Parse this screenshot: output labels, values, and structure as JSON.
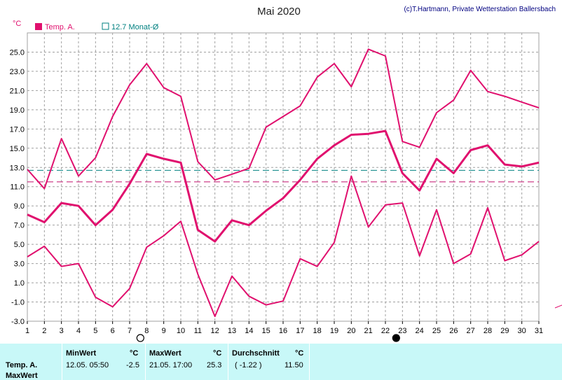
{
  "chart_data": {
    "type": "line",
    "title": "Mai 2020",
    "copyright": "(c)T.Hartmann, Private Wetterstation Ballersbach",
    "ylabel": "°C",
    "ylim": [
      -3.0,
      27.0
    ],
    "y_ticks": [
      "25.0",
      "23.0",
      "21.0",
      "19.0",
      "17.0",
      "15.0",
      "13.0",
      "11.0",
      "9.0",
      "7.0",
      "5.0",
      "3.0",
      "1.0",
      "-1.0",
      "-3.0"
    ],
    "x": [
      1,
      2,
      3,
      4,
      5,
      6,
      7,
      8,
      9,
      10,
      11,
      12,
      13,
      14,
      15,
      16,
      17,
      18,
      19,
      20,
      21,
      22,
      23,
      24,
      25,
      26,
      27,
      28,
      29,
      30,
      31
    ],
    "grid": true,
    "legend": [
      {
        "label": "Temp. A.",
        "color": "#e0106e"
      },
      {
        "label": "12.7 Monat-Ø",
        "color": "#008080"
      }
    ],
    "series": [
      {
        "role": "max",
        "color": "#e0106e",
        "values": [
          12.8,
          10.8,
          16.0,
          12.1,
          14.0,
          18.3,
          21.6,
          23.8,
          21.3,
          20.4,
          13.6,
          11.7,
          12.3,
          12.9,
          17.2,
          18.3,
          19.4,
          22.4,
          23.8,
          21.4,
          25.3,
          24.6,
          15.7,
          15.1,
          18.7,
          20.0,
          23.1,
          20.9,
          20.4,
          19.8,
          19.2
        ]
      },
      {
        "role": "avg",
        "color": "#e0106e",
        "values": [
          8.1,
          7.3,
          9.3,
          9.0,
          7.0,
          8.6,
          11.3,
          14.4,
          13.9,
          13.5,
          6.5,
          5.3,
          7.5,
          7.0,
          8.5,
          9.8,
          11.7,
          13.9,
          15.3,
          16.4,
          16.5,
          16.8,
          12.4,
          10.6,
          13.9,
          12.4,
          14.8,
          15.3,
          13.3,
          13.1,
          13.5
        ]
      },
      {
        "role": "min",
        "color": "#e0106e",
        "values": [
          3.7,
          4.8,
          2.7,
          3.0,
          -0.5,
          -1.5,
          0.4,
          4.7,
          5.9,
          7.4,
          1.9,
          -2.5,
          1.7,
          -0.4,
          -1.3,
          -0.9,
          3.5,
          2.7,
          5.2,
          12.1,
          6.8,
          9.1,
          9.3,
          3.8,
          8.6,
          3.0,
          4.0,
          8.8,
          3.3,
          3.9,
          5.3
        ]
      }
    ],
    "reference_lines": [
      {
        "value": 12.7,
        "color": "#008080"
      },
      {
        "value": 11.5,
        "color": "#c0106e"
      }
    ],
    "moon_markers": [
      {
        "day": 8,
        "phase": "full-moon"
      },
      {
        "day": 23,
        "phase": "new-moon"
      }
    ]
  },
  "stats": {
    "row1_label": "Temp. A.",
    "row2_label": "MaxWert",
    "min_header": "MinWert",
    "min_unit": "°C",
    "min_datetime": "12.05.  05:50",
    "min_value": "-2.5",
    "max_header": "MaxWert",
    "max_unit": "°C",
    "max_datetime": "21.05.  17:00",
    "max_value": "25.3",
    "avg_header": "Durchschnitt",
    "avg_unit": "°C",
    "avg_diff": "( -1.22 )",
    "avg_value": "11.50"
  }
}
